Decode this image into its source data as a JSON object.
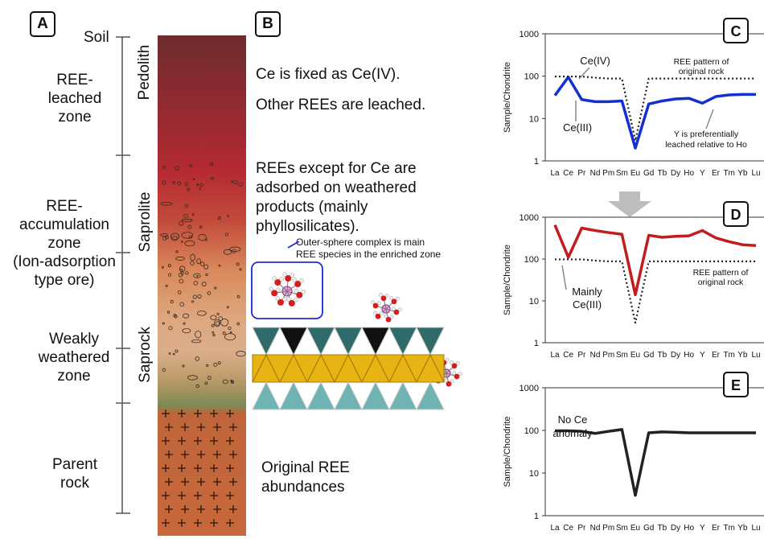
{
  "panels": {
    "a": "A",
    "b": "B",
    "c": "C",
    "d": "D",
    "e": "E"
  },
  "profile": {
    "soil": "Soil",
    "zones": [
      {
        "id": "leached",
        "lines": [
          "REE-",
          "leached",
          "zone"
        ]
      },
      {
        "id": "accum",
        "lines": [
          "REE-",
          "accumulation",
          "zone",
          "(Ion-adsorption",
          "type ore)"
        ]
      },
      {
        "id": "weak",
        "lines": [
          "Weakly",
          "weathered",
          "zone"
        ]
      },
      {
        "id": "parent",
        "lines": [
          "Parent",
          "rock"
        ]
      }
    ],
    "horizons": {
      "pedolith": "Pedolith",
      "saprolite": "Saprolite",
      "saprock": "Saprock"
    }
  },
  "descriptions": {
    "ce_fixed": "Ce is fixed as Ce(IV).",
    "others_leached": "Other REEs are leached.",
    "adsorbed": [
      "REEs except for Ce are",
      "adsorbed on weathered",
      "products (mainly",
      "phyllosilicates)."
    ],
    "outer_sphere": [
      "Outer-sphere complex is main",
      "REE species in the enriched zone"
    ],
    "original": [
      "Original REE",
      "abundances"
    ]
  },
  "colors": {
    "profile_top": "#7b2a2e",
    "profile_red": "#b82f33",
    "profile_orange": "#d9865a",
    "profile_tan": "#ddb090",
    "profile_olive": "#7e8a55",
    "profile_rock": "#c8663a",
    "sheet_dark": "#2f6b6b",
    "sheet_teal": "#6fb3b3",
    "sheet_yellow": "#e8b414",
    "series_c": "#1530d0",
    "series_d": "#c41c1c",
    "series_e": "#222222",
    "reference": "#222222",
    "arrow": "#bbbbbb"
  },
  "chart_data": [
    {
      "panel": "C",
      "type": "line",
      "ylabel": "Sample/Chondrite",
      "yscale": "log",
      "ylim": [
        1,
        1000
      ],
      "yticks": [
        "1000",
        "100",
        "10",
        "1"
      ],
      "categories": [
        "La",
        "Ce",
        "Pr",
        "Nd",
        "Pm",
        "Sm",
        "Eu",
        "Gd",
        "Tb",
        "Dy",
        "Ho",
        "Y",
        "Er",
        "Tm",
        "Yb",
        "Lu"
      ],
      "series": [
        {
          "style": "solid",
          "values": [
            35,
            95,
            28,
            25,
            25,
            26,
            2,
            22,
            26,
            29,
            30,
            23,
            33,
            36,
            37,
            37
          ]
        },
        {
          "style": "dotted",
          "values": [
            98,
            98,
            98,
            92,
            88,
            88,
            3,
            88,
            88,
            88,
            88,
            88,
            88,
            88,
            88,
            88
          ]
        }
      ],
      "annotations": {
        "ce4": "Ce(IV)",
        "ce3": "Ce(III)",
        "ref": [
          "REE pattern of",
          "original rock"
        ],
        "y": [
          "Y is preferentially",
          "leached relative to Ho"
        ]
      }
    },
    {
      "panel": "D",
      "type": "line",
      "ylabel": "Sample/Chondrite",
      "yscale": "log",
      "ylim": [
        1,
        1000
      ],
      "yticks": [
        "1000",
        "100",
        "10",
        "1"
      ],
      "categories": [
        "La",
        "Ce",
        "Pr",
        "Nd",
        "Pm",
        "Sm",
        "Eu",
        "Gd",
        "Tb",
        "Dy",
        "Ho",
        "Y",
        "Er",
        "Tm",
        "Yb",
        "Lu"
      ],
      "series": [
        {
          "style": "solid",
          "values": [
            650,
            110,
            550,
            480,
            430,
            390,
            14,
            370,
            330,
            350,
            360,
            480,
            320,
            260,
            220,
            210
          ]
        },
        {
          "style": "dotted",
          "values": [
            98,
            98,
            98,
            92,
            88,
            88,
            3,
            88,
            88,
            88,
            88,
            88,
            88,
            88,
            88,
            88
          ]
        }
      ],
      "annotations": {
        "mainly": [
          "Mainly",
          "Ce(III)"
        ],
        "ref": [
          "REE pattern of",
          "original rock"
        ]
      }
    },
    {
      "panel": "E",
      "type": "line",
      "ylabel": "Sample/Chondrite",
      "yscale": "log",
      "ylim": [
        1,
        1000
      ],
      "yticks": [
        "1000",
        "100",
        "10",
        "1"
      ],
      "categories": [
        "La",
        "Ce",
        "Pr",
        "Nd",
        "Pm",
        "Sm",
        "Eu",
        "Gd",
        "Tb",
        "Dy",
        "Ho",
        "Y",
        "Er",
        "Tm",
        "Yb",
        "Lu"
      ],
      "series": [
        {
          "style": "solid",
          "values": [
            98,
            98,
            95,
            85,
            95,
            105,
            3,
            88,
            92,
            90,
            88,
            88,
            88,
            88,
            88,
            88
          ]
        }
      ],
      "annotations": {
        "noce": [
          "No Ce",
          "anomaly"
        ]
      }
    }
  ]
}
